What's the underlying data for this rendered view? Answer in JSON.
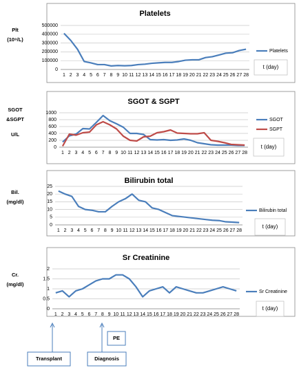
{
  "chart_data": [
    {
      "type": "line",
      "title": "Platelets",
      "ylabel": [
        "Plt",
        "(10⁹/L)"
      ],
      "xlabel": "t (day)",
      "categories": [
        "1",
        "2",
        "3",
        "4",
        "5",
        "6",
        "7",
        "8",
        "9",
        "10",
        "11",
        "12",
        "13",
        "14",
        "15",
        "16",
        "17",
        "18",
        "19",
        "20",
        "21",
        "22",
        "23",
        "24",
        "25",
        "26",
        "27",
        "28"
      ],
      "series": [
        {
          "name": "Platelets",
          "color": "#4a7ebb",
          "values": [
            410000,
            330000,
            230000,
            90000,
            75000,
            55000,
            55000,
            40000,
            45000,
            42000,
            45000,
            55000,
            60000,
            70000,
            75000,
            80000,
            80000,
            90000,
            105000,
            110000,
            110000,
            135000,
            145000,
            165000,
            185000,
            190000,
            215000,
            230000
          ]
        }
      ],
      "ylim": [
        0,
        500000
      ],
      "yticks": [
        0,
        100000,
        200000,
        300000,
        400000,
        500000
      ],
      "grid": true
    },
    {
      "type": "line",
      "title": "SGOT & SGPT",
      "ylabel": [
        "SGOT",
        "&SGPT",
        "U/L"
      ],
      "xlabel": "t (day)",
      "categories": [
        "1",
        "2",
        "3",
        "4",
        "5",
        "6",
        "7",
        "8",
        "9",
        "10",
        "11",
        "12",
        "13",
        "14",
        "15",
        "16",
        "17",
        "18",
        "19",
        "20",
        "21",
        "22",
        "23",
        "24",
        "25",
        "26",
        "27",
        "28"
      ],
      "series": [
        {
          "name": "SGOT",
          "color": "#4a7ebb",
          "values": [
            150,
            330,
            380,
            540,
            530,
            720,
            920,
            770,
            680,
            580,
            400,
            400,
            370,
            220,
            210,
            220,
            200,
            210,
            240,
            200,
            130,
            100,
            70,
            60,
            60,
            60,
            50,
            50
          ]
        },
        {
          "name": "SGPT",
          "color": "#be4b48",
          "values": [
            30,
            380,
            350,
            420,
            440,
            650,
            740,
            650,
            530,
            320,
            200,
            180,
            300,
            320,
            420,
            450,
            500,
            410,
            400,
            390,
            390,
            420,
            200,
            170,
            130,
            80,
            70,
            60
          ]
        }
      ],
      "ylim": [
        0,
        1000
      ],
      "yticks": [
        0,
        200,
        400,
        600,
        800,
        1000
      ],
      "grid": true
    },
    {
      "type": "line",
      "title": "Bilirubin total",
      "ylabel": [
        "Bil.",
        "(mg/dl)"
      ],
      "xlabel": "t (day)",
      "categories": [
        "1",
        "2",
        "3",
        "4",
        "5",
        "6",
        "7",
        "8",
        "9",
        "10",
        "11",
        "12",
        "13",
        "14",
        "15",
        "16",
        "17",
        "18",
        "19",
        "20",
        "21",
        "22",
        "23",
        "24",
        "25",
        "26",
        "27",
        "28"
      ],
      "series": [
        {
          "name": "Bilirubin total",
          "color": "#4a7ebb",
          "values": [
            22,
            20,
            18.5,
            12,
            10,
            9.5,
            8.5,
            8.5,
            12,
            15,
            17,
            20,
            16,
            15,
            11,
            10,
            8,
            6,
            5.5,
            5,
            4.5,
            4,
            3.5,
            3,
            2.8,
            2,
            1.8,
            1.5
          ]
        }
      ],
      "ylim": [
        0,
        25
      ],
      "yticks": [
        0,
        5,
        10,
        15,
        20,
        25
      ],
      "grid": true
    },
    {
      "type": "line",
      "title": "Sr Creatinine",
      "ylabel": [
        "Cr.",
        "(mg/dl)"
      ],
      "xlabel": "t (day)",
      "categories": [
        "1",
        "2",
        "3",
        "4",
        "5",
        "6",
        "7",
        "8",
        "9",
        "10",
        "11",
        "12",
        "13",
        "14",
        "15",
        "16",
        "17",
        "18",
        "19",
        "20",
        "21",
        "22",
        "23",
        "24",
        "25",
        "26",
        "27",
        "28"
      ],
      "series": [
        {
          "name": "Sr Creatinine",
          "color": "#4a7ebb",
          "values": [
            0.8,
            0.9,
            0.6,
            0.9,
            1.0,
            1.2,
            1.4,
            1.5,
            1.5,
            1.7,
            1.7,
            1.5,
            1.1,
            0.6,
            0.9,
            1.0,
            1.1,
            0.8,
            1.1,
            1.0,
            0.9,
            0.8,
            0.8,
            0.9,
            1.0,
            1.1,
            1.0,
            0.9
          ]
        }
      ],
      "ylim": [
        0,
        2
      ],
      "yticks": [
        0,
        0.5,
        1,
        1.5,
        2
      ],
      "grid": true
    }
  ],
  "annotations": {
    "transplant": "Transplant",
    "diagnosis": "Diagnosis",
    "pe": "PE"
  }
}
